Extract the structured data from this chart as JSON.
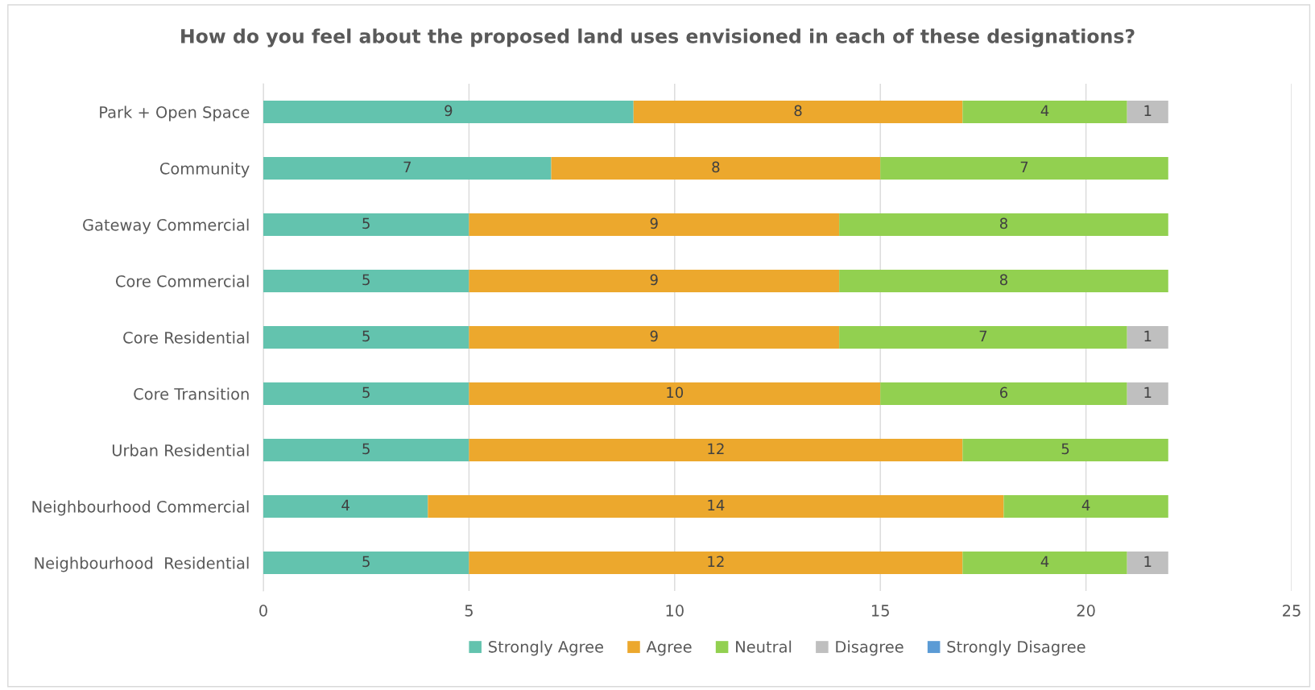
{
  "chart_data": {
    "type": "bar",
    "orientation": "horizontal",
    "stacked": true,
    "title": "How do you feel about the proposed land uses envisioned in each of these designations?",
    "categories": [
      "Park + Open Space",
      "Community",
      "Gateway Commercial",
      "Core Commercial",
      "Core Residential",
      "Core Transition",
      "Urban Residential",
      "Neighbourhood Commercial",
      "Neighbourhood  Residential"
    ],
    "series": [
      {
        "name": "Strongly Agree",
        "color": "#63c3ae",
        "values": [
          9,
          7,
          5,
          5,
          5,
          5,
          5,
          4,
          5
        ]
      },
      {
        "name": "Agree",
        "color": "#eca82d",
        "values": [
          8,
          8,
          9,
          9,
          9,
          10,
          12,
          14,
          12
        ]
      },
      {
        "name": "Neutral",
        "color": "#92d050",
        "values": [
          4,
          7,
          8,
          8,
          7,
          6,
          5,
          4,
          4
        ]
      },
      {
        "name": "Disagree",
        "color": "#bfbfbf",
        "values": [
          1,
          null,
          null,
          null,
          1,
          1,
          null,
          null,
          1
        ]
      },
      {
        "name": "Strongly Disagree",
        "color": "#5b9bd5",
        "values": [
          null,
          null,
          null,
          null,
          null,
          null,
          null,
          null,
          null
        ]
      }
    ],
    "xlim": [
      0,
      25
    ],
    "xticks": [
      0,
      5,
      10,
      15,
      20,
      25
    ],
    "grid": "x",
    "legend": "bottom",
    "data_labels": true
  }
}
